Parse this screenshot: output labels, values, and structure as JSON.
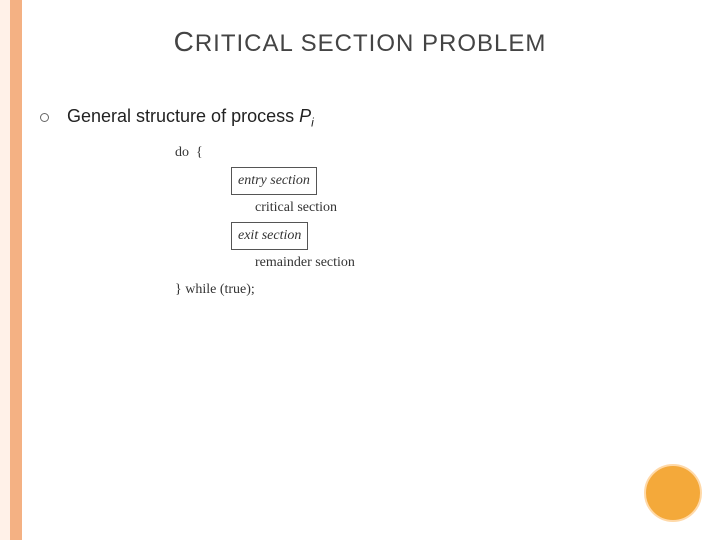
{
  "title": {
    "word1_first": "C",
    "word1_rest": "RITICAL",
    "word2": "SECTION",
    "word3": "PROBLEM"
  },
  "bullet": {
    "prefix": "General structure of process ",
    "var": "P",
    "sub": "i"
  },
  "code": {
    "l1": "do  {",
    "l2": "entry section",
    "l3": "critical section",
    "l4": "exit section",
    "l5": "remainder section",
    "l6": "} while (true);"
  },
  "colors": {
    "stripe_outer": "#fff1e8",
    "stripe_inner": "#f4b183",
    "circle_fill": "#f4a93a",
    "circle_border": "#ffd9a8"
  }
}
